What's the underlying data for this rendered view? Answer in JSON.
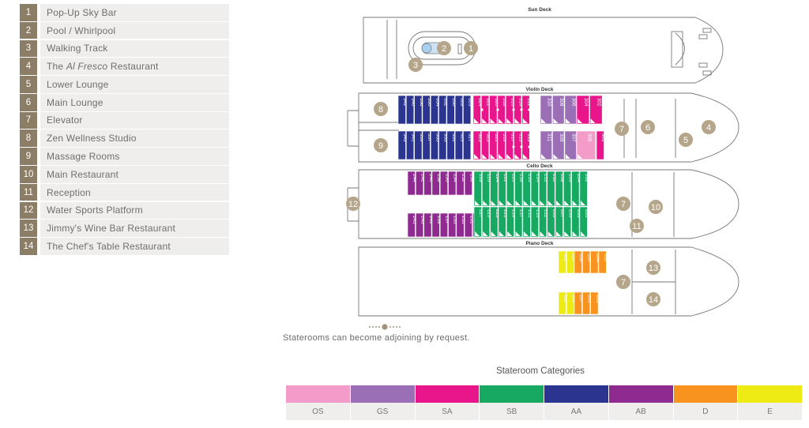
{
  "legend": [
    {
      "num": "1",
      "label": "Pop-Up Sky Bar"
    },
    {
      "num": "2",
      "label": "Pool / Whirlpool"
    },
    {
      "num": "3",
      "label": "Walking Track"
    },
    {
      "num": "4",
      "label_pre": "The ",
      "label_italic": "Al Fresco",
      "label_post": " Restaurant"
    },
    {
      "num": "5",
      "label": "Lower Lounge"
    },
    {
      "num": "6",
      "label": "Main Lounge"
    },
    {
      "num": "7",
      "label": "Elevator"
    },
    {
      "num": "8",
      "label": "Zen Wellness Studio"
    },
    {
      "num": "9",
      "label": "Massage Rooms"
    },
    {
      "num": "10",
      "label": "Main Restaurant"
    },
    {
      "num": "11",
      "label": "Reception"
    },
    {
      "num": "12",
      "label": "Water Sports Platform"
    },
    {
      "num": "13",
      "label": "Jimmy's Wine Bar Restaurant"
    },
    {
      "num": "14",
      "label": "The Chef's Table Restaurant"
    }
  ],
  "decks": {
    "sun": {
      "title": "Sun Deck",
      "markers": [
        "1",
        "2",
        "3"
      ]
    },
    "violin": {
      "title": "Violin Deck",
      "markers": [
        "8",
        "9",
        "7",
        "6",
        "4",
        "5"
      ],
      "aa_top": [
        "342",
        "340",
        "338",
        "336",
        "334",
        "332",
        "330",
        "328",
        "326"
      ],
      "aa_bottom": [
        "343",
        "341",
        "339",
        "337",
        "335",
        "333",
        "331",
        "329",
        "327"
      ],
      "sa_top": [
        "324",
        "322",
        "320",
        "318",
        "316",
        "314",
        "312"
      ],
      "sa_bottom": [
        "325",
        "323",
        "321",
        "319",
        "317",
        "315",
        "313"
      ],
      "gs_top": [
        "310",
        "308",
        "306"
      ],
      "gs_bottom": [
        "311",
        "309",
        "307"
      ],
      "os_bottom": [
        "305"
      ],
      "sa_top2": [
        "304",
        "302"
      ],
      "sa_bottom2": [
        "301"
      ]
    },
    "cello": {
      "title": "Cello Deck",
      "markers": [
        "12",
        "7",
        "10",
        "11"
      ],
      "ab_top": [
        "244",
        "242",
        "240",
        "238",
        "236",
        "234",
        "232",
        "230"
      ],
      "ab_bottom": [
        "245",
        "243",
        "241",
        "239",
        "237",
        "235",
        "233",
        "231",
        "229"
      ],
      "sb_top": [
        "228",
        "226",
        "224",
        "222",
        "220",
        "218",
        "216",
        "214",
        "212",
        "210",
        "208",
        "206",
        "204",
        "202"
      ],
      "sb_bottom": [
        "227",
        "225",
        "223",
        "221",
        "219",
        "217",
        "215",
        "213",
        "211",
        "209",
        "207",
        "205",
        "203",
        "201"
      ]
    },
    "piano": {
      "title": "Piano Deck",
      "markers": [
        "13",
        "7",
        "14"
      ],
      "e_top": [
        "112",
        "110"
      ],
      "d_top": [
        "108",
        "106",
        "104",
        "102"
      ],
      "e_bottom": [
        "111",
        "109"
      ],
      "d_bottom": [
        "107",
        "105",
        "103"
      ]
    }
  },
  "adjoining_note": "Staterooms can become adjoining by request.",
  "categories_title": "Stateroom Categories",
  "categories": [
    {
      "code": "OS",
      "color": "#f39cc9"
    },
    {
      "code": "GS",
      "color": "#9b6fb5"
    },
    {
      "code": "SA",
      "color": "#e9168b"
    },
    {
      "code": "SB",
      "color": "#17a862"
    },
    {
      "code": "AA",
      "color": "#2b3590"
    },
    {
      "code": "AB",
      "color": "#8e2a90"
    },
    {
      "code": "D",
      "color": "#f7931e"
    },
    {
      "code": "E",
      "color": "#eeea14"
    }
  ]
}
